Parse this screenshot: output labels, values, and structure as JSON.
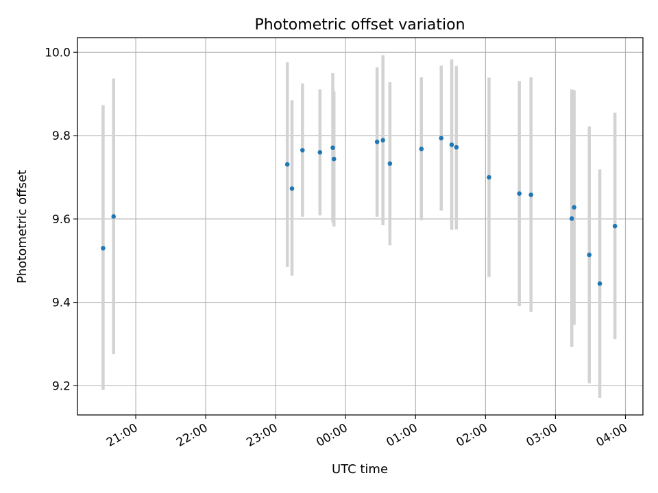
{
  "chart_data": {
    "type": "scatter",
    "title": "Photometric offset variation",
    "xlabel": "UTC time",
    "ylabel": "Photometric offset",
    "x_unit": "time",
    "xlim": [
      "20:10",
      "04:15"
    ],
    "ylim": [
      9.13,
      10.035
    ],
    "x_ticks": [
      "21:00",
      "22:00",
      "23:00",
      "00:00",
      "01:00",
      "02:00",
      "03:00",
      "04:00"
    ],
    "y_ticks": [
      "9.2",
      "9.4",
      "9.6",
      "9.8",
      "10.0"
    ],
    "grid": true,
    "colors": {
      "point": "#1f77b4",
      "errorbar": "#d3d3d3",
      "grid": "#b0b0b0"
    },
    "points": [
      {
        "x": "20:32",
        "y": 9.53,
        "low": 9.19,
        "high": 9.873
      },
      {
        "x": "20:41",
        "y": 9.606,
        "low": 9.276,
        "high": 9.937
      },
      {
        "x": "23:10",
        "y": 9.731,
        "low": 9.485,
        "high": 9.976
      },
      {
        "x": "23:14",
        "y": 9.673,
        "low": 9.464,
        "high": 9.885
      },
      {
        "x": "23:23",
        "y": 9.765,
        "low": 9.605,
        "high": 9.925
      },
      {
        "x": "23:38",
        "y": 9.76,
        "low": 9.609,
        "high": 9.911
      },
      {
        "x": "23:49",
        "y": 9.771,
        "low": 9.592,
        "high": 9.95
      },
      {
        "x": "23:50",
        "y": 9.744,
        "low": 9.582,
        "high": 9.906
      },
      {
        "x": "00:27",
        "y": 9.785,
        "low": 9.605,
        "high": 9.964
      },
      {
        "x": "00:32",
        "y": 9.789,
        "low": 9.585,
        "high": 9.993
      },
      {
        "x": "00:38",
        "y": 9.733,
        "low": 9.537,
        "high": 9.928
      },
      {
        "x": "01:05",
        "y": 9.768,
        "low": 9.597,
        "high": 9.94
      },
      {
        "x": "01:22",
        "y": 9.794,
        "low": 9.62,
        "high": 9.968
      },
      {
        "x": "01:31",
        "y": 9.778,
        "low": 9.574,
        "high": 9.983
      },
      {
        "x": "01:35",
        "y": 9.772,
        "low": 9.575,
        "high": 9.967
      },
      {
        "x": "02:03",
        "y": 9.7,
        "low": 9.461,
        "high": 9.939
      },
      {
        "x": "02:29",
        "y": 9.661,
        "low": 9.391,
        "high": 9.931
      },
      {
        "x": "02:39",
        "y": 9.658,
        "low": 9.377,
        "high": 9.94
      },
      {
        "x": "03:14",
        "y": 9.601,
        "low": 9.293,
        "high": 9.911
      },
      {
        "x": "03:16",
        "y": 9.628,
        "low": 9.346,
        "high": 9.909
      },
      {
        "x": "03:29",
        "y": 9.514,
        "low": 9.206,
        "high": 9.822
      },
      {
        "x": "03:38",
        "y": 9.445,
        "low": 9.171,
        "high": 9.719
      },
      {
        "x": "03:51",
        "y": 9.583,
        "low": 9.312,
        "high": 9.855
      }
    ]
  }
}
